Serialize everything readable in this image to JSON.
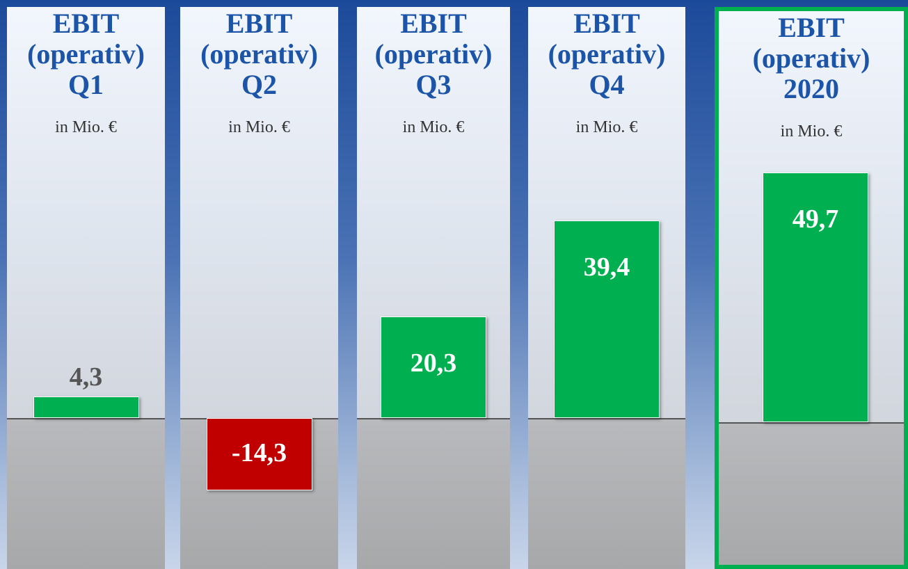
{
  "chart_data": [
    {
      "type": "bar",
      "title": "EBIT (operativ) Q1",
      "subtitle": "in Mio. €",
      "values": [
        4.3
      ],
      "value_labels": [
        "4,3"
      ],
      "color": "#00b050",
      "ylim": [
        -30,
        50
      ]
    },
    {
      "type": "bar",
      "title": "EBIT (operativ) Q2",
      "subtitle": "in Mio. €",
      "values": [
        -14.3
      ],
      "value_labels": [
        "-14,3"
      ],
      "color": "#c00000",
      "ylim": [
        -30,
        50
      ]
    },
    {
      "type": "bar",
      "title": "EBIT (operativ) Q3",
      "subtitle": "in Mio. €",
      "values": [
        20.3
      ],
      "value_labels": [
        "20,3"
      ],
      "color": "#00b050",
      "ylim": [
        -30,
        50
      ]
    },
    {
      "type": "bar",
      "title": "EBIT (operativ) Q4",
      "subtitle": "in Mio. €",
      "values": [
        39.4
      ],
      "value_labels": [
        "39,4"
      ],
      "color": "#00b050",
      "ylim": [
        -30,
        50
      ]
    },
    {
      "type": "bar",
      "title": "EBIT (operativ) 2020",
      "subtitle": "in Mio. €",
      "values": [
        49.7
      ],
      "value_labels": [
        "49,7"
      ],
      "color": "#00b050",
      "ylim": [
        -30,
        50
      ],
      "frame_color": "#00b050"
    }
  ]
}
